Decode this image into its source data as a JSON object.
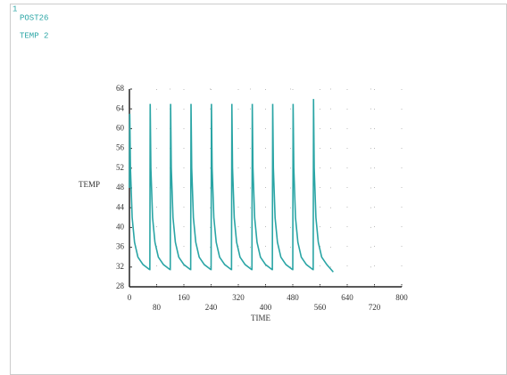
{
  "window_number": "1",
  "chart_data": {
    "type": "line",
    "labels": [
      "POST26",
      "TEMP 2"
    ],
    "ylabel": "TEMP",
    "xlabel": "TIME",
    "xlim": [
      0,
      800
    ],
    "xticks": [
      0,
      80,
      160,
      240,
      320,
      400,
      480,
      560,
      640,
      720,
      800
    ],
    "ylim": [
      28,
      68
    ],
    "yticks": [
      28,
      32,
      36,
      40,
      44,
      48,
      52,
      56,
      60,
      64,
      68
    ],
    "grid": true,
    "series": [
      {
        "name": "TEMP 2",
        "color": "#2aa5a5",
        "x": [
          0,
          1,
          3,
          8,
          15,
          25,
          40,
          59,
          60,
          61,
          63,
          68,
          75,
          85,
          100,
          119,
          120,
          121,
          123,
          128,
          135,
          145,
          160,
          179,
          180,
          181,
          183,
          188,
          195,
          205,
          220,
          239,
          240,
          241,
          243,
          248,
          255,
          265,
          280,
          299,
          300,
          301,
          303,
          308,
          315,
          325,
          340,
          359,
          360,
          361,
          363,
          368,
          375,
          385,
          400,
          419,
          420,
          421,
          423,
          428,
          435,
          445,
          460,
          479,
          480,
          481,
          483,
          488,
          495,
          505,
          520,
          539,
          540,
          541,
          543,
          548,
          555,
          565,
          580,
          599
        ],
        "values": [
          48,
          63,
          52,
          42,
          37,
          34,
          32.5,
          31.5,
          31.5,
          65,
          52,
          42,
          37,
          34,
          32.5,
          31.5,
          31.5,
          65,
          52,
          42,
          37,
          34,
          32.5,
          31.5,
          31.5,
          65,
          52,
          42,
          37,
          34,
          32.5,
          31.5,
          31.5,
          65,
          52,
          42,
          37,
          34,
          32.5,
          31.5,
          31.5,
          65,
          52,
          42,
          37,
          34,
          32.5,
          31.5,
          31.5,
          65,
          52,
          42,
          37,
          34,
          32.5,
          31.5,
          31.5,
          65,
          52,
          42,
          37,
          34,
          32.5,
          31.5,
          31.5,
          65,
          52,
          42,
          37,
          34,
          32.5,
          31.5,
          31.5,
          66,
          52,
          42,
          37,
          34,
          32.5,
          31
        ]
      }
    ]
  }
}
